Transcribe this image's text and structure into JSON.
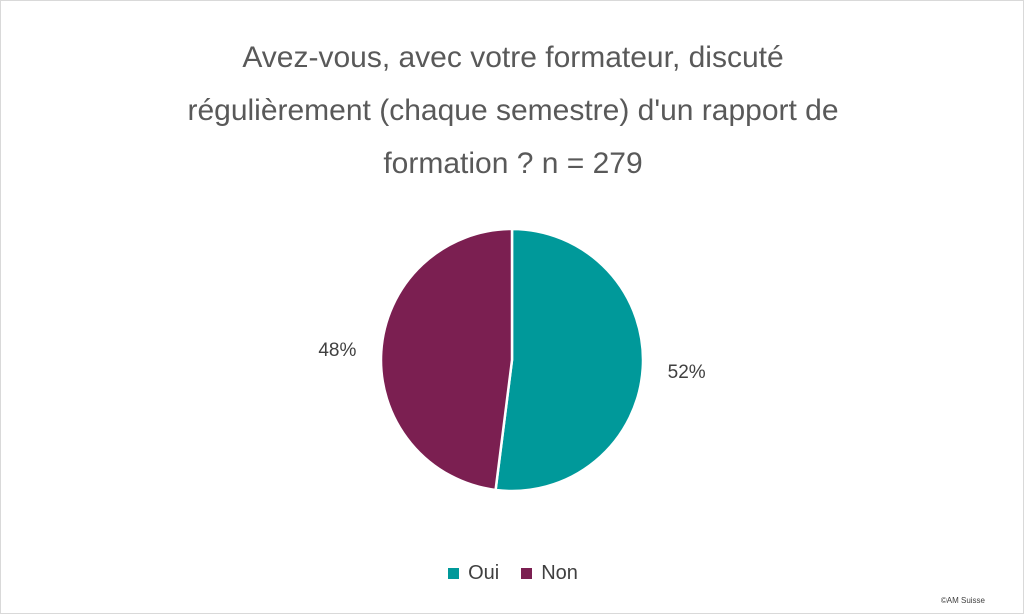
{
  "chart_data": {
    "type": "pie",
    "title": "Avez-vous, avec votre formateur, discuté\nrégulièrement (chaque semestre) d'un rapport de\nformation ? n = 279",
    "categories": [
      "Oui",
      "Non"
    ],
    "values": [
      52,
      48
    ],
    "value_labels": [
      "52%",
      "48%"
    ],
    "colors": [
      "#00999a",
      "#7b1f51"
    ],
    "legend_position": "bottom"
  },
  "footer": {
    "copyright": "©AM Suisse"
  }
}
